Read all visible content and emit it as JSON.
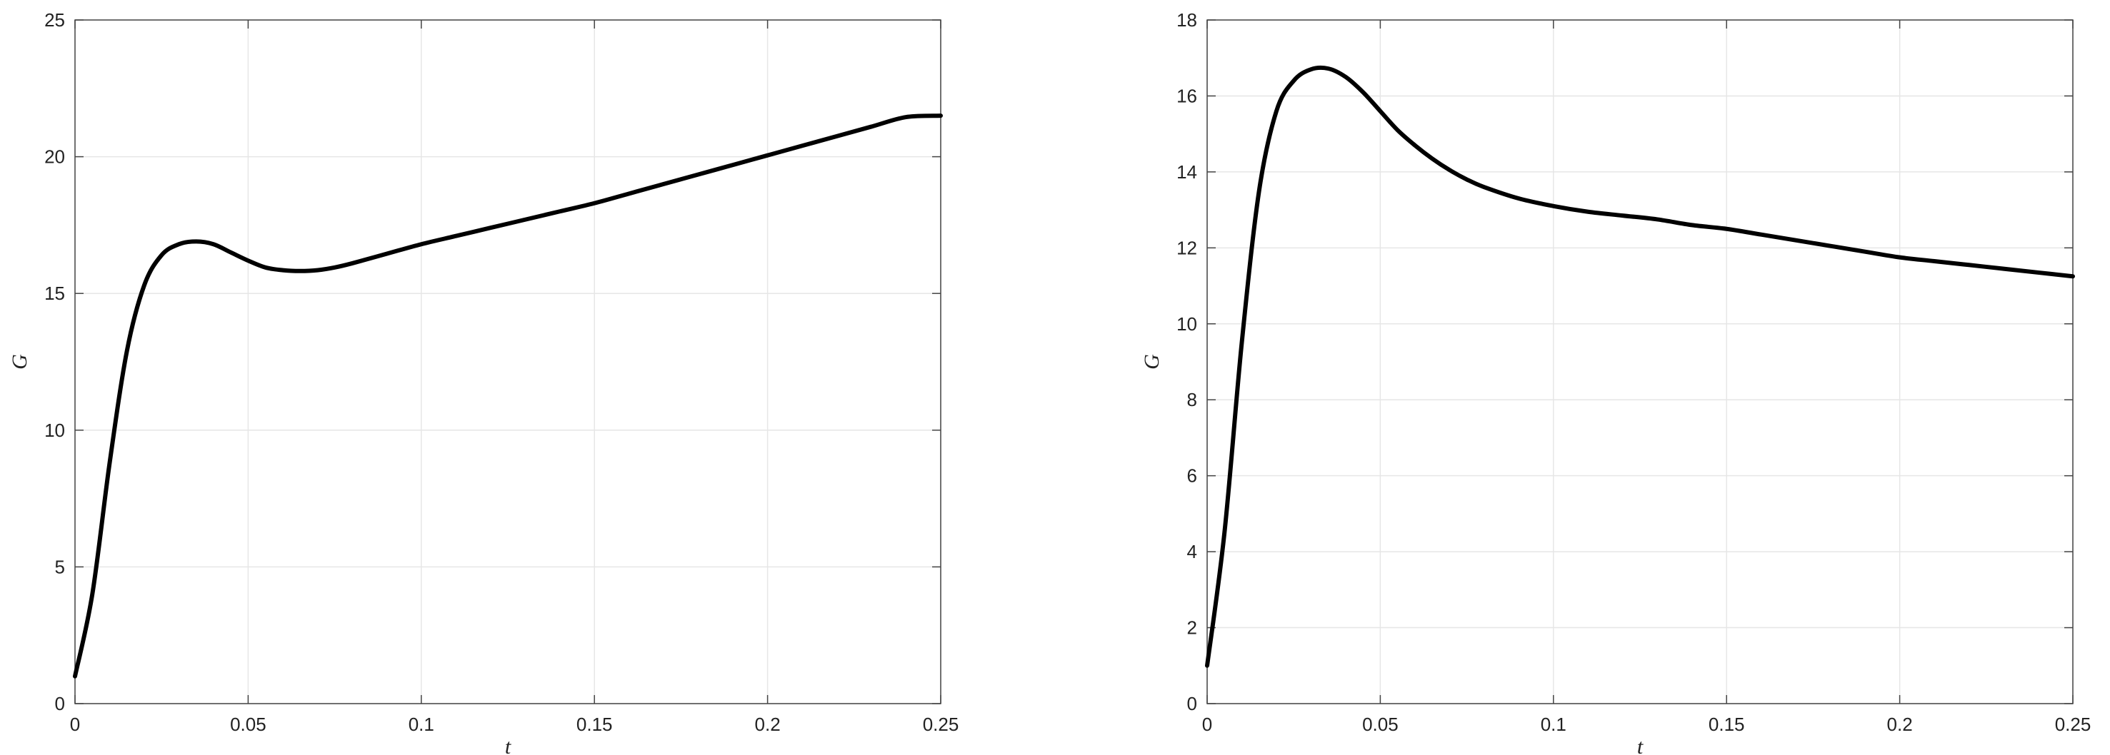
{
  "chart_data": [
    {
      "type": "line",
      "xlabel": "t",
      "ylabel": "G",
      "xlim": [
        0,
        0.25
      ],
      "ylim": [
        0,
        25
      ],
      "xticks": [
        0,
        0.05,
        0.1,
        0.15,
        0.2,
        0.25
      ],
      "xtick_labels": [
        "0",
        "0.05",
        "0.1",
        "0.15",
        "0.2",
        "0.25"
      ],
      "yticks": [
        0,
        5,
        10,
        15,
        20,
        25
      ],
      "ytick_labels": [
        "0",
        "5",
        "10",
        "15",
        "20",
        "25"
      ],
      "grid": true,
      "series": [
        {
          "color": "#000000",
          "x": [
            0,
            0.005,
            0.01,
            0.015,
            0.02,
            0.025,
            0.03,
            0.035,
            0.04,
            0.045,
            0.05,
            0.055,
            0.06,
            0.065,
            0.07,
            0.075,
            0.08,
            0.09,
            0.1,
            0.11,
            0.12,
            0.13,
            0.14,
            0.15,
            0.16,
            0.17,
            0.18,
            0.19,
            0.2,
            0.21,
            0.22,
            0.23,
            0.24,
            0.25
          ],
          "y": [
            1.0,
            4.0,
            8.8,
            12.9,
            15.3,
            16.4,
            16.8,
            16.9,
            16.8,
            16.5,
            16.2,
            15.95,
            15.85,
            15.82,
            15.85,
            15.95,
            16.1,
            16.45,
            16.8,
            17.1,
            17.4,
            17.7,
            18.0,
            18.3,
            18.65,
            19.0,
            19.35,
            19.7,
            20.05,
            20.4,
            20.75,
            21.1,
            21.45,
            21.5
          ]
        }
      ]
    },
    {
      "type": "line",
      "xlabel": "t",
      "ylabel": "G",
      "xlim": [
        0,
        0.25
      ],
      "ylim": [
        0,
        18
      ],
      "xticks": [
        0,
        0.05,
        0.1,
        0.15,
        0.2,
        0.25
      ],
      "xtick_labels": [
        "0",
        "0.05",
        "0.1",
        "0.15",
        "0.2",
        "0.25"
      ],
      "yticks": [
        0,
        2,
        4,
        6,
        8,
        10,
        12,
        14,
        16,
        18
      ],
      "ytick_labels": [
        "0",
        "2",
        "4",
        "6",
        "8",
        "10",
        "12",
        "14",
        "16",
        "18"
      ],
      "grid": true,
      "series": [
        {
          "color": "#000000",
          "x": [
            0,
            0.005,
            0.01,
            0.015,
            0.02,
            0.025,
            0.03,
            0.035,
            0.04,
            0.045,
            0.05,
            0.055,
            0.06,
            0.065,
            0.07,
            0.075,
            0.08,
            0.09,
            0.1,
            0.11,
            0.12,
            0.13,
            0.14,
            0.15,
            0.16,
            0.17,
            0.18,
            0.19,
            0.2,
            0.21,
            0.22,
            0.23,
            0.24,
            0.25
          ],
          "y": [
            1.0,
            4.5,
            9.5,
            13.5,
            15.6,
            16.4,
            16.7,
            16.72,
            16.5,
            16.1,
            15.6,
            15.1,
            14.7,
            14.35,
            14.05,
            13.8,
            13.6,
            13.3,
            13.1,
            12.95,
            12.85,
            12.75,
            12.6,
            12.5,
            12.35,
            12.2,
            12.05,
            11.9,
            11.75,
            11.65,
            11.55,
            11.45,
            11.35,
            11.25
          ]
        }
      ]
    }
  ]
}
